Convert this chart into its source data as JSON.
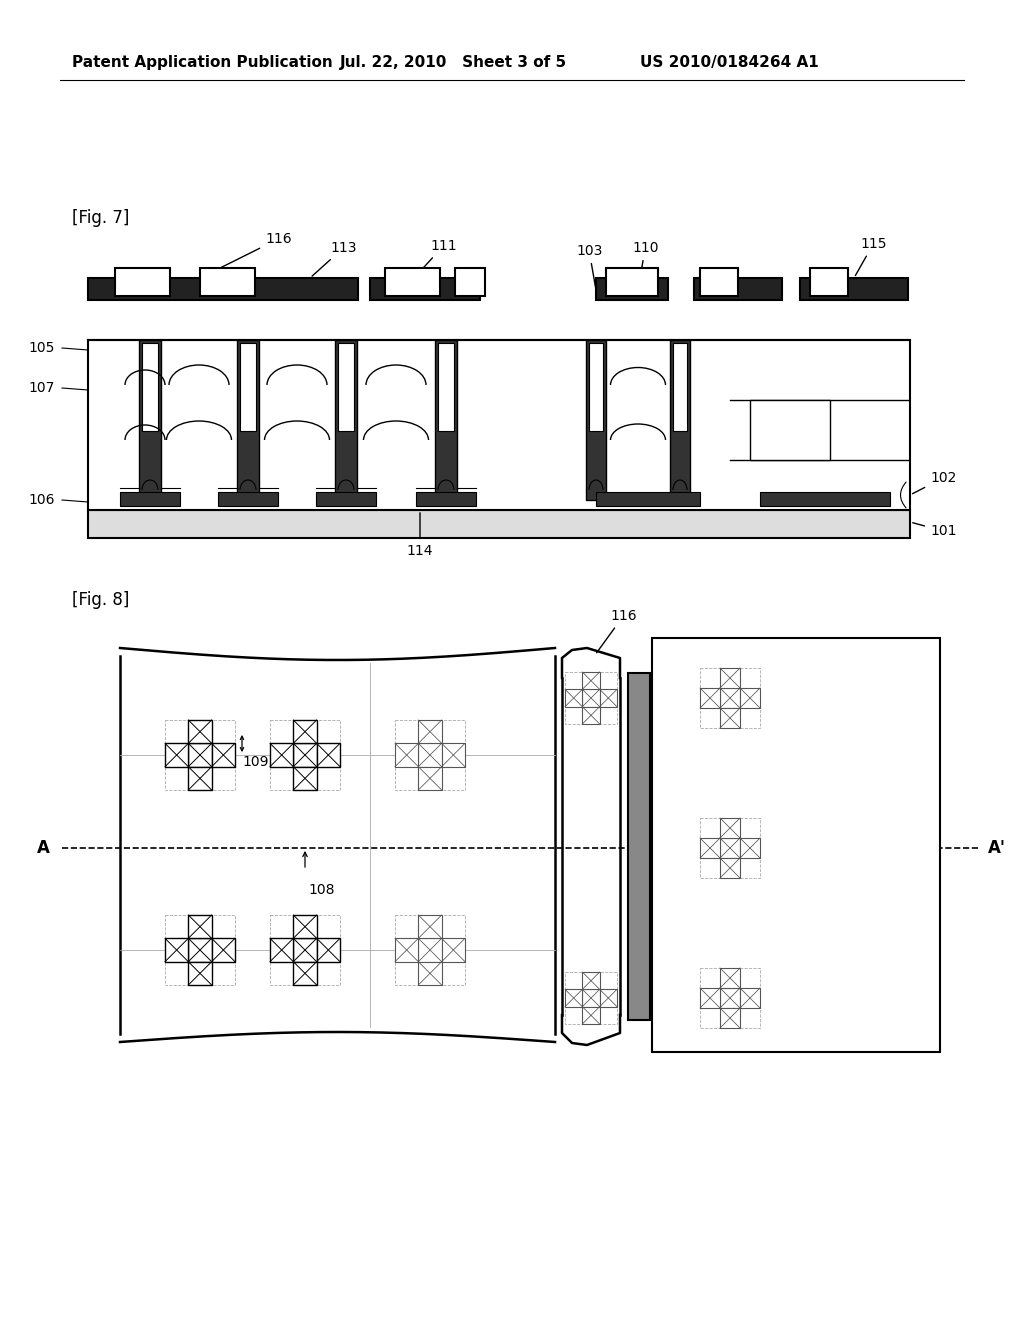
{
  "background_color": "#ffffff",
  "header_left": "Patent Application Publication",
  "header_mid": "Jul. 22, 2010   Sheet 3 of 5",
  "header_right": "US 2010/0184264 A1",
  "fig7_label": "[Fig. 7]",
  "fig8_label": "[Fig. 8]",
  "text_color": "#000000",
  "line_color": "#000000"
}
